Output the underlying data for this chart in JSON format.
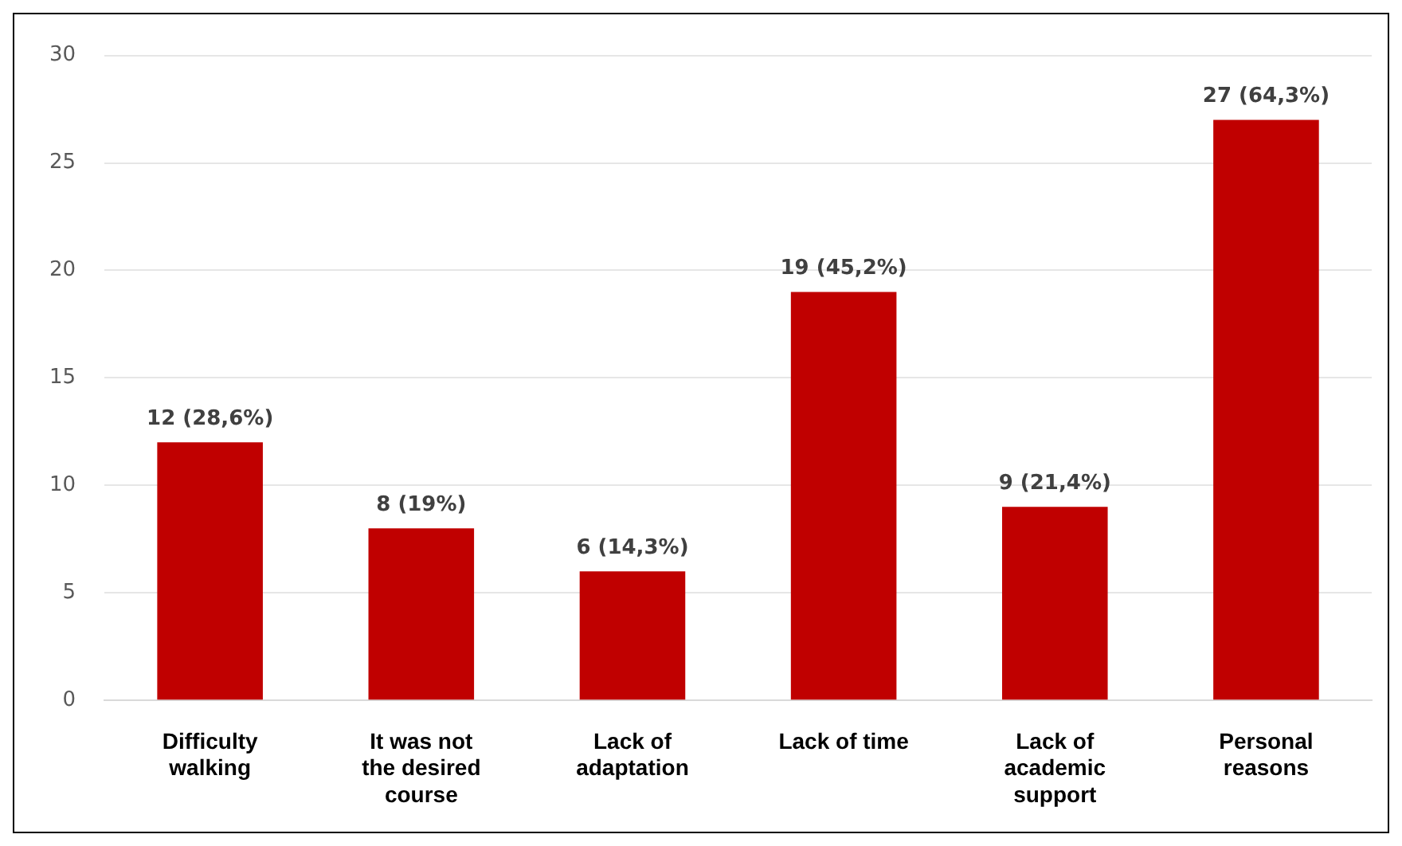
{
  "chart_data": {
    "type": "bar",
    "categories": [
      "Difficulty walking",
      "It was not the desired course",
      "Lack of adaptation",
      "Lack of time",
      "Lack of academic support",
      "Personal reasons"
    ],
    "values": [
      12,
      8,
      6,
      19,
      9,
      27
    ],
    "value_labels": [
      "12 (28,6%)",
      "8 (19%)",
      "6 (14,3%)",
      "19 (45,2%)",
      "9 (21,4%)",
      "27 (64,3%)"
    ],
    "color": "#c00000",
    "ylim": [
      0,
      30
    ],
    "yticks": [
      0,
      5,
      10,
      15,
      20,
      25,
      30
    ],
    "grid": "y",
    "legend": false
  }
}
